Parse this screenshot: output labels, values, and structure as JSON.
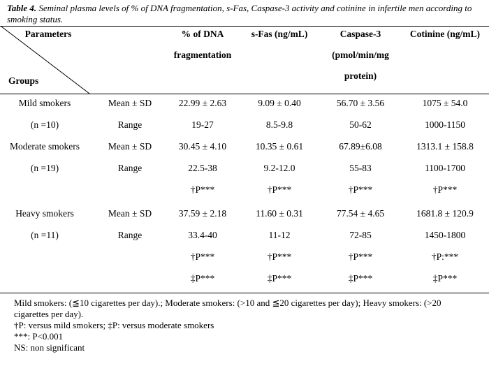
{
  "caption": {
    "label": "Table 4.",
    "text": " Seminal plasma levels of % of DNA fragmentation, s-Fas, Caspase-3 activity and cotinine in infertile men according to smoking status."
  },
  "header": {
    "parameters": "Parameters",
    "groups": "Groups",
    "dna_line1": "% of DNA",
    "dna_line2": "fragmentation",
    "sfas": "s-Fas (ng/mL)",
    "casp_line1": "Caspase-3",
    "casp_line2": "(pmol/min/mg",
    "casp_line3": "protein)",
    "cotinine": "Cotinine (ng/mL)"
  },
  "rows": [
    {
      "group": "Mild smokers",
      "stat": "Mean ± SD",
      "dna": "22.99 ± 2.63",
      "sfas": "9.09 ± 0.40",
      "casp": "56.70 ± 3.56",
      "cot": "1075 ± 54.0"
    },
    {
      "group": "(n =10)",
      "stat": "Range",
      "dna": "19-27",
      "sfas": "8.5-9.8",
      "casp": "50-62",
      "cot": "1000-1150"
    },
    {
      "group": "Moderate smokers",
      "stat": "Mean ± SD",
      "dna": "30.45 ± 4.10",
      "sfas": "10.35 ± 0.61",
      "casp": "67.89±6.08",
      "cot": "1313.1 ± 158.8"
    },
    {
      "group": "(n =19)",
      "stat": "Range",
      "dna": "22.5-38",
      "sfas": "9.2-12.0",
      "casp": "55-83",
      "cot": "1100-1700"
    },
    {
      "group": "",
      "stat": "",
      "dna": "†P***",
      "sfas": "†P***",
      "casp": "†P***",
      "cot": "†P***"
    },
    {
      "group": "Heavy smokers",
      "stat": "Mean ± SD",
      "dna": "37.59 ± 2.18",
      "sfas": "11.60 ± 0.31",
      "casp": "77.54 ± 4.65",
      "cot": "1681.8 ± 120.9"
    },
    {
      "group": "(n =11)",
      "stat": "Range",
      "dna": "33.4-40",
      "sfas": "11-12",
      "casp": "72-85",
      "cot": "1450-1800"
    },
    {
      "group": "",
      "stat": "",
      "dna": "†P***",
      "sfas": "†P***",
      "casp": "†P***",
      "cot": "†P:***"
    },
    {
      "group": "",
      "stat": "",
      "dna": "‡P***",
      "sfas": "‡P***",
      "casp": "‡P***",
      "cot": "‡P***"
    }
  ],
  "notes": [
    "Mild smokers: (≦10 cigarettes per day).; Moderate smokers: (>10 and ≦20 cigarettes per day); Heavy smokers: (>20 cigarettes per day).",
    "†P: versus mild smokers; ‡P: versus moderate smokers",
    "***: P<0.001",
    "NS: non significant"
  ]
}
